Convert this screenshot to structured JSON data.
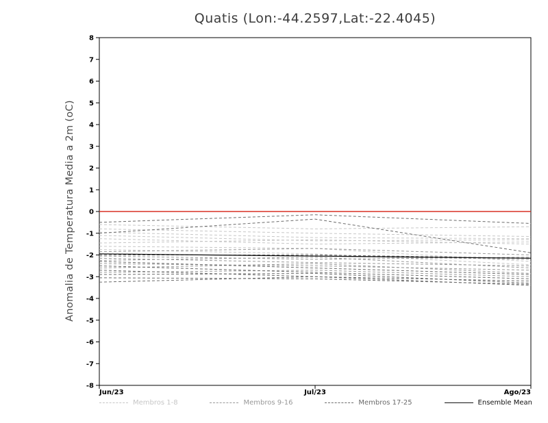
{
  "chart_data": {
    "type": "line",
    "title": "Quatis (Lon:-44.2597,Lat:-22.4045)",
    "ylabel": "Anomalia de Temperatura Media a 2m (oC)",
    "xlabel": "",
    "categories": [
      "Jun/23",
      "Jul/23",
      "Ago/23"
    ],
    "ylim": [
      -8,
      8
    ],
    "ytick_step": 1,
    "grid": false,
    "legend_position": "bottom",
    "reference_line": {
      "y": 0,
      "color": "#d93025",
      "style": "solid"
    },
    "groups": [
      {
        "name": "Membros 1-8",
        "color": "#c6c6c6",
        "dash": true,
        "series": [
          [
            -0.6,
            -0.8,
            -0.7
          ],
          [
            -0.8,
            -1.0,
            -1.15
          ],
          [
            -0.95,
            -1.2,
            -1.25
          ],
          [
            -1.1,
            -1.35,
            -1.3
          ],
          [
            -1.25,
            -1.5,
            -1.4
          ],
          [
            -1.45,
            -1.3,
            -1.5
          ],
          [
            -1.6,
            -1.7,
            -2.3
          ],
          [
            -1.75,
            -1.95,
            -2.45
          ]
        ]
      },
      {
        "name": "Membros 9-16",
        "color": "#989898",
        "dash": true,
        "series": [
          [
            -1.85,
            -1.7,
            -2.0
          ],
          [
            -1.95,
            -2.05,
            -2.2
          ],
          [
            -2.05,
            -2.2,
            -2.1
          ],
          [
            -2.15,
            -2.35,
            -2.5
          ],
          [
            -2.25,
            -2.1,
            -2.6
          ],
          [
            -2.4,
            -2.5,
            -2.7
          ],
          [
            -2.6,
            -2.4,
            -2.85
          ],
          [
            -2.8,
            -2.7,
            -3.0
          ]
        ]
      },
      {
        "name": "Membros 17-25",
        "color": "#6a6a6a",
        "dash": true,
        "series": [
          [
            -0.5,
            -0.15,
            -0.55
          ],
          [
            -1.0,
            -0.35,
            -1.9
          ],
          [
            -2.0,
            -2.0,
            -2.15
          ],
          [
            -2.3,
            -2.6,
            -2.9
          ],
          [
            -2.5,
            -2.8,
            -3.1
          ],
          [
            -2.7,
            -3.0,
            -3.2
          ],
          [
            -2.9,
            -2.85,
            -3.3
          ],
          [
            -3.05,
            -3.1,
            -3.35
          ],
          [
            -3.25,
            -3.0,
            -3.4
          ]
        ]
      },
      {
        "name": "Ensemble Mean",
        "color": "#111111",
        "dash": false,
        "series": [
          [
            -1.95,
            -2.05,
            -2.15
          ]
        ]
      }
    ]
  }
}
